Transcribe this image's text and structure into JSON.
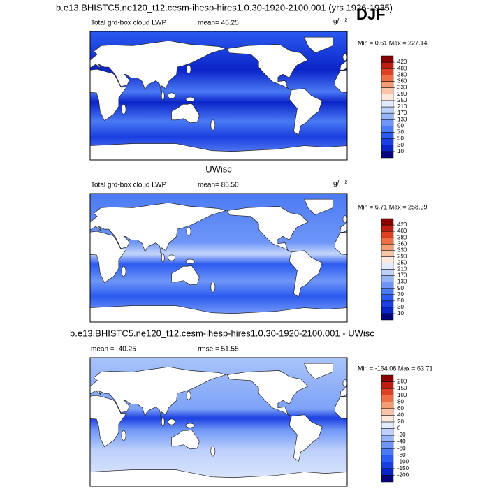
{
  "header": {
    "title": "b.e13.BHISTC5.ne120_t12.cesm-ihesp-hires1.0.30-1920-2100.001 (yrs 1926-1935)",
    "season": "DJF"
  },
  "panels": [
    {
      "left_label": "Total grd-box cloud LWP",
      "center_label": "mean=  46.25",
      "unit": "g/m²",
      "min_max": "Min =   0.61 Max = 227.14",
      "colorbar": {
        "levels": [
          10,
          30,
          50,
          70,
          90,
          130,
          170,
          210,
          250,
          290,
          330,
          360,
          380,
          400,
          420
        ],
        "colors": [
          "#06067a",
          "#0b24c8",
          "#1a3ee0",
          "#2b5bf0",
          "#4a7af5",
          "#6f96f7",
          "#97b4f9",
          "#bcd0fb",
          "#e2ebfd",
          "#fde9dc",
          "#f9c4a7",
          "#f49c74",
          "#ec6f48",
          "#dd4126",
          "#be1e12",
          "#8b0000"
        ]
      }
    },
    {
      "title": "UWisc",
      "left_label": "Total grd-box cloud LWP",
      "center_label": "mean=  86.50",
      "unit": "g/m²",
      "min_max": "Min =   6.71 Max = 258.39",
      "colorbar": {
        "levels": [
          10,
          30,
          50,
          70,
          90,
          130,
          170,
          210,
          250,
          290,
          330,
          360,
          380,
          400,
          420
        ],
        "colors": [
          "#06067a",
          "#0b24c8",
          "#1a3ee0",
          "#2b5bf0",
          "#4a7af5",
          "#6f96f7",
          "#97b4f9",
          "#bcd0fb",
          "#e2ebfd",
          "#fde9dc",
          "#f9c4a7",
          "#f49c74",
          "#ec6f48",
          "#dd4126",
          "#be1e12",
          "#8b0000"
        ]
      }
    },
    {
      "title": "b.e13.BHISTC5.ne120_t12.cesm-ihesp-hires1.0.30-1920-2100.001 - UWisc",
      "left_label": "mean = -40.25",
      "center_label": "rmse =  51.55",
      "min_max": "Min = -164.08 Max =  63.71",
      "colorbar": {
        "levels": [
          -200,
          -150,
          -100,
          -80,
          -60,
          -40,
          -20,
          0,
          20,
          40,
          60,
          80,
          100,
          150,
          200
        ],
        "colors": [
          "#06067a",
          "#0b24c8",
          "#1a3ee0",
          "#2b5bf0",
          "#4a7af5",
          "#6f96f7",
          "#97b4f9",
          "#bcd0fb",
          "#e2ebfd",
          "#fde9dc",
          "#f9c4a7",
          "#f49c74",
          "#ec6f48",
          "#dd4126",
          "#be1e12",
          "#8b0000"
        ]
      }
    }
  ]
}
